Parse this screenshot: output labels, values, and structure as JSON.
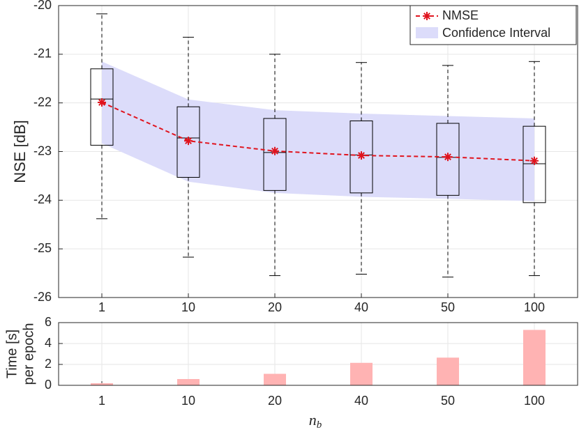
{
  "chart_data": [
    {
      "type": "box",
      "ylabel": "NSE [dB]",
      "categories": [
        "1",
        "10",
        "20",
        "40",
        "50",
        "100"
      ],
      "ylim": [
        -26,
        -20
      ],
      "yticks": [
        -26,
        -25,
        -24,
        -23,
        -22,
        -21,
        -20
      ],
      "grid": true,
      "boxes": [
        {
          "low": -24.38,
          "q1": -22.87,
          "median": -21.92,
          "q3": -21.3,
          "high": -20.17
        },
        {
          "low": -25.17,
          "q1": -23.53,
          "median": -22.72,
          "q3": -22.08,
          "high": -20.65
        },
        {
          "low": -25.55,
          "q1": -23.8,
          "median": -23.02,
          "q3": -22.32,
          "high": -21.0
        },
        {
          "low": -25.52,
          "q1": -23.85,
          "median": -23.07,
          "q3": -22.37,
          "high": -21.17
        },
        {
          "low": -25.58,
          "q1": -23.9,
          "median": -23.12,
          "q3": -22.42,
          "high": -21.23
        },
        {
          "low": -25.55,
          "q1": -24.05,
          "median": -23.25,
          "q3": -22.48,
          "high": -21.15
        }
      ],
      "series": [
        {
          "name": "NMSE",
          "color": "#e0141e",
          "values": [
            -21.99,
            -22.78,
            -22.99,
            -23.08,
            -23.11,
            -23.19
          ]
        }
      ],
      "band": {
        "name": "Confidence Interval",
        "color": "#dcdcfa",
        "upper": [
          -21.15,
          -21.93,
          -22.15,
          -22.22,
          -22.27,
          -22.32
        ],
        "lower": [
          -22.83,
          -23.62,
          -23.85,
          -23.93,
          -23.97,
          -24.02
        ]
      },
      "legend": "upper right"
    },
    {
      "type": "bar",
      "ylabel": [
        "Time [s]",
        "per epoch"
      ],
      "xlabel": {
        "text": "n",
        "subscript": "b"
      },
      "categories": [
        "1",
        "10",
        "20",
        "40",
        "50",
        "100"
      ],
      "values": [
        0.2,
        0.6,
        1.1,
        2.15,
        2.65,
        5.3
      ],
      "color": "#ffb3b3",
      "ylim": [
        0,
        6
      ],
      "yticks": [
        0,
        2,
        4,
        6
      ],
      "grid": true
    }
  ]
}
